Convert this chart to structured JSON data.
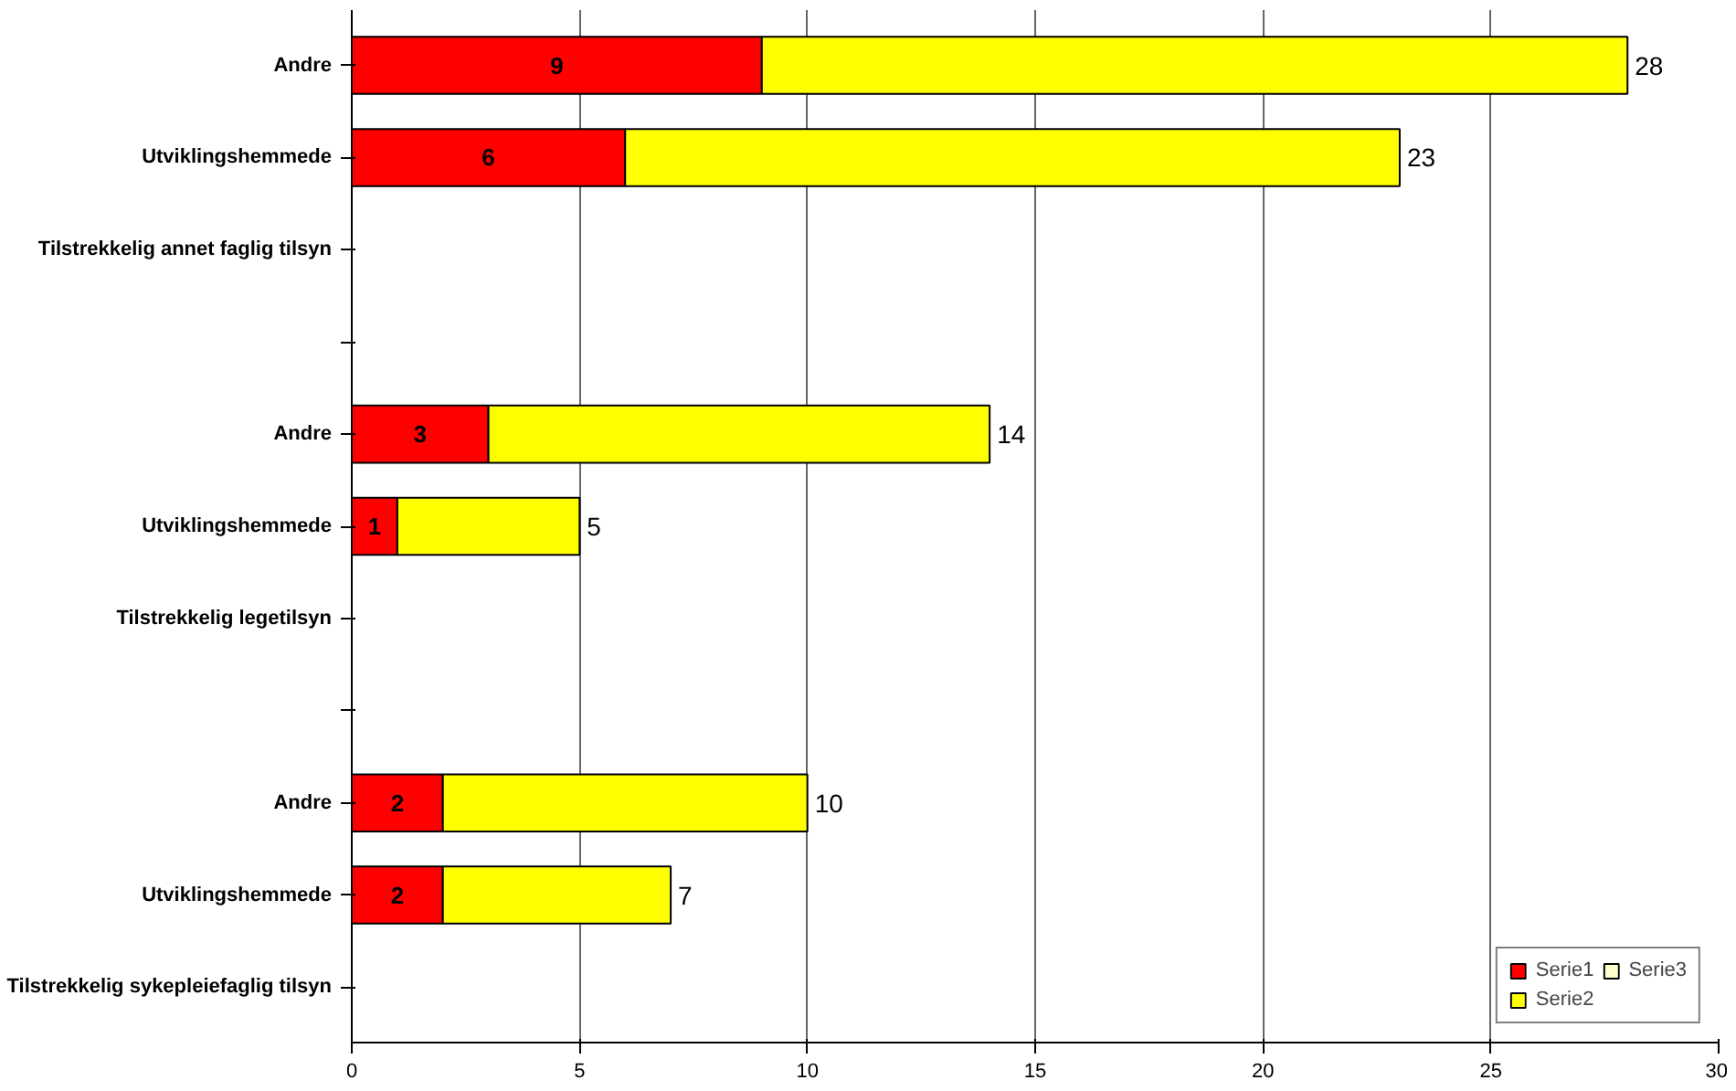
{
  "chart_data": {
    "type": "bar",
    "orientation": "horizontal",
    "stacked": true,
    "categories": [
      "Andre",
      "Utviklingshemmede",
      "Tilstrekkelig annet faglig tilsyn",
      null,
      "Andre",
      "Utviklingshemmede",
      "Tilstrekkelig legetilsyn",
      null,
      "Andre",
      "Utviklingshemmede",
      "Tilstrekkelig sykepleiefaglig tilsyn"
    ],
    "series": [
      {
        "name": "Serie1",
        "color": "#ff0000",
        "values": [
          9,
          6,
          null,
          null,
          3,
          1,
          null,
          null,
          2,
          2,
          null
        ],
        "value_labels": [
          "9",
          "6",
          null,
          null,
          "3",
          "1",
          null,
          null,
          "2",
          "2",
          null
        ]
      },
      {
        "name": "Serie2",
        "color": "#ffff00",
        "values": [
          19,
          17,
          null,
          null,
          11,
          4,
          null,
          null,
          8,
          5,
          null
        ]
      },
      {
        "name": "Serie3",
        "color": "#ffffcc",
        "values": [
          null,
          null,
          null,
          null,
          null,
          null,
          null,
          null,
          null,
          null,
          null
        ]
      }
    ],
    "totals": [
      "28",
      "23",
      null,
      null,
      "14",
      "5",
      null,
      null,
      "10",
      "7",
      null
    ],
    "xlim": [
      0,
      30
    ],
    "xticks": [
      0,
      5,
      10,
      15,
      20,
      25,
      30
    ],
    "grid": "x",
    "legend": "bottom right"
  }
}
